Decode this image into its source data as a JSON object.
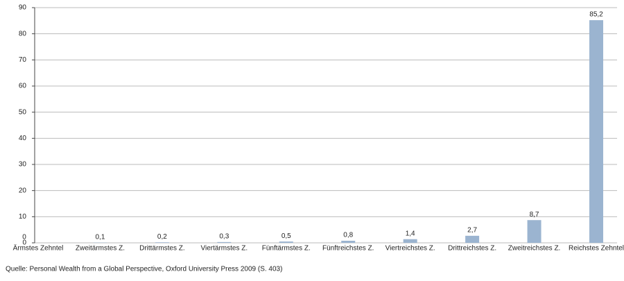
{
  "chart_data": {
    "type": "bar",
    "categories": [
      "Ärmstes Zehntel",
      "Zweitärmstes Z.",
      "Drittärmstes Z.",
      "Viertärmstes Z.",
      "Fünftärmstes Z.",
      "Fünftreichstes Z.",
      "Viertreichstes Z.",
      "Drittreichstes Z.",
      "Zweitreichstes Z.",
      "Reichstes Zehntel"
    ],
    "values": [
      0,
      0.1,
      0.2,
      0.3,
      0.5,
      0.8,
      1.4,
      2.7,
      8.7,
      85.2
    ],
    "value_labels": [
      "0",
      "0,1",
      "0,2",
      "0,3",
      "0,5",
      "0,8",
      "1,4",
      "2,7",
      "8,7",
      "85,2"
    ],
    "color": "#9bb4d0",
    "ylim": [
      0,
      90
    ],
    "yticks": [
      0,
      10,
      20,
      30,
      40,
      50,
      60,
      70,
      80,
      90
    ],
    "grid": true,
    "source": "Quelle: Personal Wealth from a Global Perspective, Oxford University Press 2009 (S. 403)"
  }
}
